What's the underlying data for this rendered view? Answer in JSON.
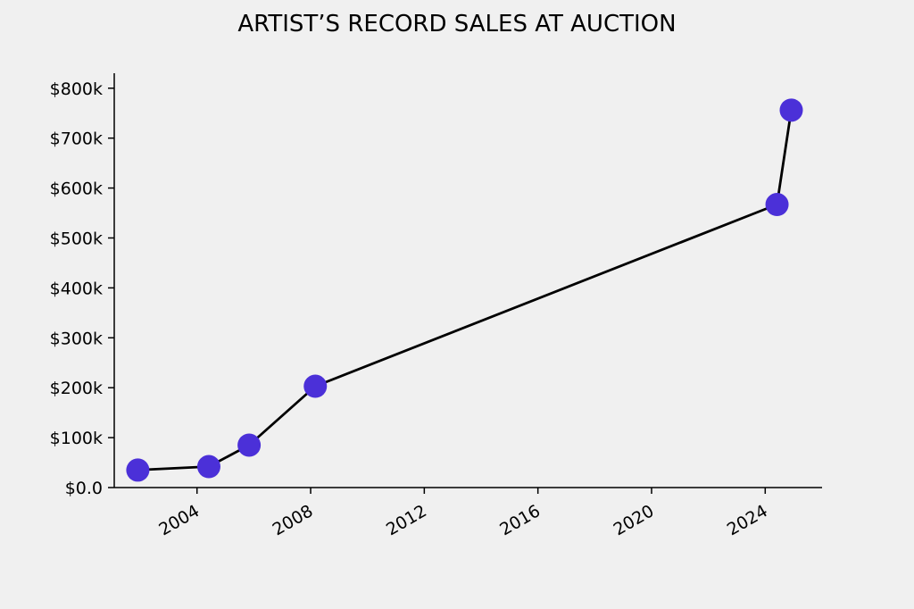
{
  "chart_data": {
    "type": "line",
    "title": "ARTIST’S RECORD SALES AT AUCTION",
    "xlabel": "",
    "ylabel": "",
    "x_axis": {
      "kind": "date",
      "min": "2001-02-01",
      "max": "2026-01-01",
      "ticks": [
        {
          "value": "2004-01-01",
          "label": "2004"
        },
        {
          "value": "2008-01-01",
          "label": "2008"
        },
        {
          "value": "2012-01-01",
          "label": "2012"
        },
        {
          "value": "2016-01-01",
          "label": "2016"
        },
        {
          "value": "2020-01-01",
          "label": "2020"
        },
        {
          "value": "2024-01-01",
          "label": "2024"
        }
      ]
    },
    "y_axis": {
      "min": 0,
      "max": 830000,
      "ticks": [
        {
          "value": 0,
          "label": "$0.0"
        },
        {
          "value": 100000,
          "label": "$100k"
        },
        {
          "value": 200000,
          "label": "$200k"
        },
        {
          "value": 300000,
          "label": "$300k"
        },
        {
          "value": 400000,
          "label": "$400k"
        },
        {
          "value": 500000,
          "label": "$500k"
        },
        {
          "value": 600000,
          "label": "$600k"
        },
        {
          "value": 700000,
          "label": "$700k"
        },
        {
          "value": 800000,
          "label": "$800k"
        }
      ]
    },
    "series": [
      {
        "line_color": "#000000",
        "marker_color": "#4b30d8",
        "points": [
          {
            "x": "2001-12-01",
            "y": 35000
          },
          {
            "x": "2004-06-01",
            "y": 42000
          },
          {
            "x": "2005-11-01",
            "y": 85000
          },
          {
            "x": "2008-03-01",
            "y": 203000
          },
          {
            "x": "2024-06-01",
            "y": 567000
          },
          {
            "x": "2024-12-01",
            "y": 756000
          }
        ]
      }
    ],
    "grid": false,
    "legend": "none"
  }
}
